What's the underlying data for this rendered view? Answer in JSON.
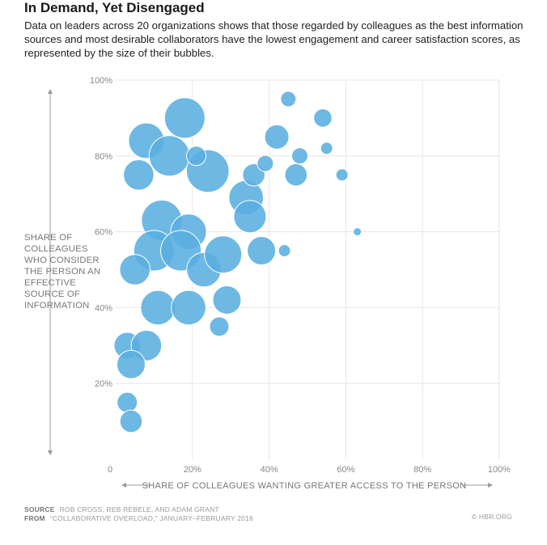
{
  "title": "In Demand, Yet Disengaged",
  "subtitle": "Data on leaders across 20 organizations shows that those regarded by colleagues as the best information sources and most desirable collaborators have the lowest engagement and career satisfaction scores, as represented by the size of their bubbles.",
  "chart_data": {
    "type": "scatter",
    "title": "In Demand, Yet Disengaged",
    "xlabel": "SHARE OF COLLEAGUES WANTING GREATER ACCESS TO THE PERSON",
    "ylabel": "SHARE OF COLLEAGUES WHO CONSIDER THE PERSON AN EFFECTIVE SOURCE OF INFORMATION",
    "xlim": [
      0,
      100
    ],
    "ylim": [
      0,
      100
    ],
    "x_ticks": [
      "0",
      "20%",
      "40%",
      "60%",
      "80%",
      "100%"
    ],
    "y_ticks": [
      "20%",
      "40%",
      "60%",
      "80%",
      "100%"
    ],
    "grid": true,
    "color": "#5aaee0",
    "size_meaning": "engagement and career satisfaction (relative bubble size)",
    "points": [
      {
        "x": 18,
        "y": 90,
        "size": 1.0
      },
      {
        "x": 8,
        "y": 84,
        "size": 0.88
      },
      {
        "x": 14,
        "y": 80,
        "size": 1.0
      },
      {
        "x": 24,
        "y": 76,
        "size": 1.05
      },
      {
        "x": 6,
        "y": 75,
        "size": 0.75
      },
      {
        "x": 21,
        "y": 80,
        "size": 0.48
      },
      {
        "x": 12,
        "y": 63,
        "size": 1.0
      },
      {
        "x": 19,
        "y": 60,
        "size": 0.88
      },
      {
        "x": 10,
        "y": 55,
        "size": 1.0
      },
      {
        "x": 17,
        "y": 55,
        "size": 1.0
      },
      {
        "x": 5,
        "y": 50,
        "size": 0.75
      },
      {
        "x": 23,
        "y": 50,
        "size": 0.85
      },
      {
        "x": 28,
        "y": 54,
        "size": 0.92
      },
      {
        "x": 11,
        "y": 40,
        "size": 0.85
      },
      {
        "x": 19,
        "y": 40,
        "size": 0.85
      },
      {
        "x": 29,
        "y": 42,
        "size": 0.7
      },
      {
        "x": 27,
        "y": 35,
        "size": 0.48
      },
      {
        "x": 34,
        "y": 69,
        "size": 0.85
      },
      {
        "x": 35,
        "y": 64,
        "size": 0.8
      },
      {
        "x": 36,
        "y": 75,
        "size": 0.55
      },
      {
        "x": 39,
        "y": 78,
        "size": 0.4
      },
      {
        "x": 38,
        "y": 55,
        "size": 0.7
      },
      {
        "x": 42,
        "y": 85,
        "size": 0.6
      },
      {
        "x": 45,
        "y": 95,
        "size": 0.38
      },
      {
        "x": 47,
        "y": 75,
        "size": 0.55
      },
      {
        "x": 48,
        "y": 80,
        "size": 0.4
      },
      {
        "x": 44,
        "y": 55,
        "size": 0.3
      },
      {
        "x": 54,
        "y": 90,
        "size": 0.45
      },
      {
        "x": 55,
        "y": 82,
        "size": 0.3
      },
      {
        "x": 59,
        "y": 75,
        "size": 0.3
      },
      {
        "x": 63,
        "y": 60,
        "size": 0.2
      },
      {
        "x": 3,
        "y": 30,
        "size": 0.65
      },
      {
        "x": 8,
        "y": 30,
        "size": 0.75
      },
      {
        "x": 4,
        "y": 25,
        "size": 0.7
      },
      {
        "x": 3,
        "y": 15,
        "size": 0.5
      },
      {
        "x": 4,
        "y": 10,
        "size": 0.55
      }
    ]
  },
  "footer": {
    "source_label": "SOURCE",
    "source_text": "ROB CROSS, REB REBELE, AND ADAM GRANT",
    "from_label": "FROM",
    "from_text": "“COLLABORATIVE OVERLOAD,” JANUARY–FEBRUARY 2016",
    "credit": "© HBR.ORG"
  }
}
